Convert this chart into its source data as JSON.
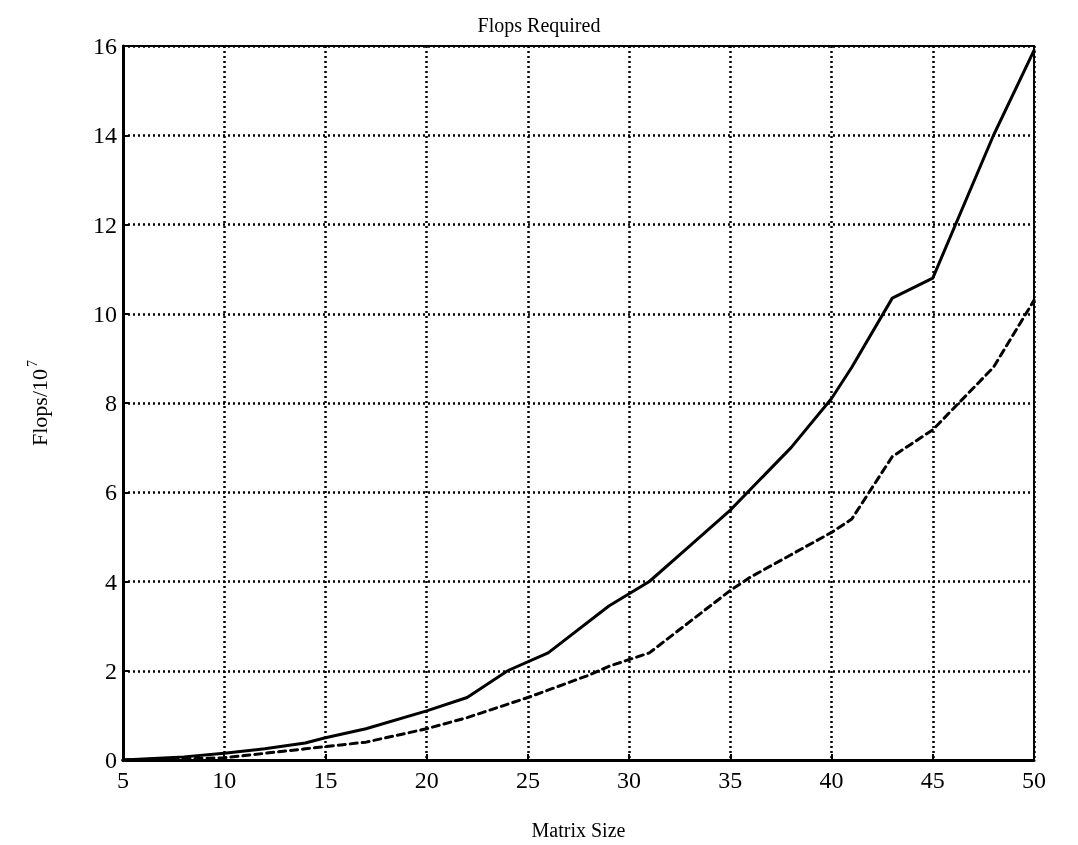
{
  "chart_data": {
    "type": "line",
    "title": "Flops Required",
    "xlabel": "Matrix Size",
    "ylabel": "Flops/10$^{7}$",
    "xlim": [
      5,
      50
    ],
    "xticks": [
      5,
      10,
      15,
      20,
      25,
      30,
      35,
      40,
      45,
      50
    ],
    "ylim": [
      0,
      16
    ],
    "yticks": [
      0,
      2,
      4,
      6,
      8,
      10,
      12,
      14,
      16
    ],
    "grid": true,
    "marker": "none",
    "series": [
      {
        "color": "#000000",
        "line_style": "solid",
        "x": [
          5,
          8,
          10,
          12,
          14,
          15,
          17,
          20,
          22,
          24,
          26,
          29,
          31,
          33,
          35,
          38,
          40,
          41,
          43,
          45,
          48,
          50
        ],
        "values": [
          0,
          0.07,
          0.15,
          0.25,
          0.38,
          0.5,
          0.7,
          1.1,
          1.4,
          2.0,
          2.4,
          3.45,
          4.0,
          4.8,
          5.6,
          7.0,
          8.1,
          8.8,
          10.35,
          10.8,
          14.0,
          15.9
        ]
      },
      {
        "color": "#000000",
        "line_style": "dashed",
        "x": [
          5,
          10,
          11,
          14,
          17,
          20,
          22,
          25,
          28,
          29,
          31,
          33,
          35,
          36,
          38,
          40,
          41,
          43,
          45,
          48,
          50
        ],
        "values": [
          0,
          0.05,
          0.1,
          0.25,
          0.4,
          0.7,
          0.95,
          1.4,
          1.9,
          2.1,
          2.4,
          3.1,
          3.8,
          4.1,
          4.6,
          5.1,
          5.4,
          6.8,
          7.4,
          8.8,
          10.3
        ]
      }
    ]
  }
}
